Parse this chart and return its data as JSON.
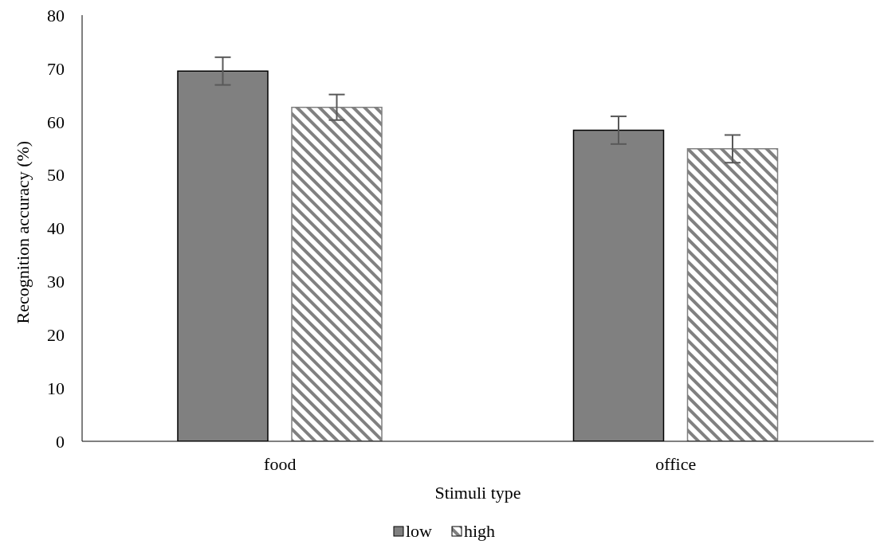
{
  "chart_data": {
    "type": "bar",
    "xlabel": "Stimuli type",
    "ylabel": "Recognition accuracy (%)",
    "categories": [
      "food",
      "office"
    ],
    "series": [
      {
        "name": "low",
        "color": "#808080",
        "values": [
          69.5,
          58.4
        ],
        "errors": [
          2.6,
          2.6
        ]
      },
      {
        "name": "high",
        "color": "#808080",
        "values": [
          62.7,
          54.9
        ],
        "errors": [
          2.4,
          2.6
        ]
      }
    ],
    "ylim": [
      0,
      80
    ],
    "yticks": [
      0,
      10,
      20,
      30,
      40,
      50,
      60,
      70,
      80
    ],
    "grid": false,
    "legend": "bottom"
  }
}
